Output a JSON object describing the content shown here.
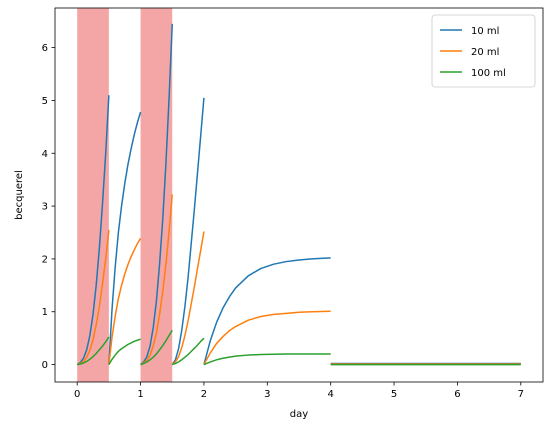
{
  "chart_data": {
    "type": "line",
    "title": "",
    "xlabel": "day",
    "ylabel": "becquerel",
    "xlim": [
      -0.35,
      7.35
    ],
    "ylim": [
      -0.33,
      6.75
    ],
    "xticks": [
      0,
      1,
      2,
      3,
      4,
      5,
      6,
      7
    ],
    "yticks": [
      0,
      1,
      2,
      3,
      4,
      5,
      6
    ],
    "grid": false,
    "legend_position": "top-right",
    "shaded_intervals": [
      {
        "x0": 0.0,
        "x1": 0.5,
        "color": "#f4a6a6"
      },
      {
        "x0": 1.0,
        "x1": 1.5,
        "color": "#f4a6a6"
      }
    ],
    "series": [
      {
        "name": "10 ml",
        "color": "#1f77b4",
        "segments": [
          [
            [
              0.0,
              0.0
            ],
            [
              0.05,
              0.04
            ],
            [
              0.1,
              0.12
            ],
            [
              0.15,
              0.28
            ],
            [
              0.2,
              0.55
            ],
            [
              0.25,
              0.95
            ],
            [
              0.3,
              1.5
            ],
            [
              0.35,
              2.2
            ],
            [
              0.4,
              3.05
            ],
            [
              0.45,
              4.0
            ],
            [
              0.5,
              5.1
            ]
          ],
          [
            [
              0.5,
              0.0
            ],
            [
              0.55,
              1.05
            ],
            [
              0.6,
              1.85
            ],
            [
              0.65,
              2.5
            ],
            [
              0.7,
              3.0
            ],
            [
              0.75,
              3.42
            ],
            [
              0.8,
              3.78
            ],
            [
              0.85,
              4.08
            ],
            [
              0.9,
              4.35
            ],
            [
              0.95,
              4.58
            ],
            [
              1.0,
              4.78
            ]
          ],
          [
            [
              1.0,
              0.0
            ],
            [
              1.05,
              0.05
            ],
            [
              1.1,
              0.15
            ],
            [
              1.15,
              0.35
            ],
            [
              1.2,
              0.7
            ],
            [
              1.25,
              1.2
            ],
            [
              1.3,
              1.9
            ],
            [
              1.35,
              2.75
            ],
            [
              1.4,
              3.8
            ],
            [
              1.45,
              5.05
            ],
            [
              1.5,
              6.45
            ]
          ],
          [
            [
              1.5,
              0.0
            ],
            [
              1.55,
              0.09
            ],
            [
              1.6,
              0.3
            ],
            [
              1.65,
              0.65
            ],
            [
              1.7,
              1.1
            ],
            [
              1.75,
              1.65
            ],
            [
              1.8,
              2.3
            ],
            [
              1.85,
              2.95
            ],
            [
              1.9,
              3.65
            ],
            [
              1.95,
              4.35
            ],
            [
              2.0,
              5.05
            ]
          ],
          [
            [
              2.0,
              0.0
            ],
            [
              2.1,
              0.45
            ],
            [
              2.2,
              0.8
            ],
            [
              2.3,
              1.07
            ],
            [
              2.4,
              1.28
            ],
            [
              2.5,
              1.45
            ],
            [
              2.7,
              1.68
            ],
            [
              2.9,
              1.82
            ],
            [
              3.1,
              1.9
            ],
            [
              3.3,
              1.95
            ],
            [
              3.5,
              1.98
            ],
            [
              3.7,
              2.0
            ],
            [
              4.0,
              2.02
            ]
          ],
          [
            [
              4.0,
              0.02
            ],
            [
              7.0,
              0.02
            ]
          ]
        ]
      },
      {
        "name": "20 ml",
        "color": "#ff7f0e",
        "segments": [
          [
            [
              0.0,
              0.0
            ],
            [
              0.05,
              0.02
            ],
            [
              0.1,
              0.06
            ],
            [
              0.15,
              0.14
            ],
            [
              0.2,
              0.27
            ],
            [
              0.25,
              0.47
            ],
            [
              0.3,
              0.75
            ],
            [
              0.35,
              1.1
            ],
            [
              0.4,
              1.53
            ],
            [
              0.45,
              2.0
            ],
            [
              0.5,
              2.55
            ]
          ],
          [
            [
              0.5,
              0.0
            ],
            [
              0.55,
              0.52
            ],
            [
              0.6,
              0.92
            ],
            [
              0.65,
              1.25
            ],
            [
              0.7,
              1.5
            ],
            [
              0.75,
              1.71
            ],
            [
              0.8,
              1.89
            ],
            [
              0.85,
              2.04
            ],
            [
              0.9,
              2.17
            ],
            [
              0.95,
              2.29
            ],
            [
              1.0,
              2.39
            ]
          ],
          [
            [
              1.0,
              0.0
            ],
            [
              1.05,
              0.03
            ],
            [
              1.1,
              0.08
            ],
            [
              1.15,
              0.18
            ],
            [
              1.2,
              0.35
            ],
            [
              1.25,
              0.6
            ],
            [
              1.3,
              0.95
            ],
            [
              1.35,
              1.38
            ],
            [
              1.4,
              1.9
            ],
            [
              1.45,
              2.52
            ],
            [
              1.5,
              3.22
            ]
          ],
          [
            [
              1.5,
              0.0
            ],
            [
              1.55,
              0.05
            ],
            [
              1.6,
              0.15
            ],
            [
              1.65,
              0.32
            ],
            [
              1.7,
              0.55
            ],
            [
              1.75,
              0.83
            ],
            [
              1.8,
              1.15
            ],
            [
              1.85,
              1.48
            ],
            [
              1.9,
              1.83
            ],
            [
              1.95,
              2.17
            ],
            [
              2.0,
              2.52
            ]
          ],
          [
            [
              2.0,
              0.0
            ],
            [
              2.1,
              0.22
            ],
            [
              2.2,
              0.4
            ],
            [
              2.3,
              0.53
            ],
            [
              2.4,
              0.64
            ],
            [
              2.5,
              0.72
            ],
            [
              2.7,
              0.84
            ],
            [
              2.9,
              0.91
            ],
            [
              3.1,
              0.95
            ],
            [
              3.3,
              0.97
            ],
            [
              3.5,
              0.99
            ],
            [
              3.7,
              1.0
            ],
            [
              4.0,
              1.01
            ]
          ],
          [
            [
              4.0,
              0.01
            ],
            [
              7.0,
              0.01
            ]
          ]
        ]
      },
      {
        "name": "100 ml",
        "color": "#2ca02c",
        "segments": [
          [
            [
              0.0,
              0.0
            ],
            [
              0.05,
              0.01
            ],
            [
              0.1,
              0.03
            ],
            [
              0.15,
              0.06
            ],
            [
              0.2,
              0.1
            ],
            [
              0.25,
              0.15
            ],
            [
              0.3,
              0.21
            ],
            [
              0.35,
              0.28
            ],
            [
              0.4,
              0.35
            ],
            [
              0.45,
              0.43
            ],
            [
              0.5,
              0.52
            ]
          ],
          [
            [
              0.5,
              0.0
            ],
            [
              0.55,
              0.1
            ],
            [
              0.6,
              0.18
            ],
            [
              0.65,
              0.25
            ],
            [
              0.7,
              0.3
            ],
            [
              0.75,
              0.34
            ],
            [
              0.8,
              0.38
            ],
            [
              0.85,
              0.41
            ],
            [
              0.9,
              0.44
            ],
            [
              0.95,
              0.46
            ],
            [
              1.0,
              0.48
            ]
          ],
          [
            [
              1.0,
              0.0
            ],
            [
              1.05,
              0.02
            ],
            [
              1.1,
              0.05
            ],
            [
              1.15,
              0.09
            ],
            [
              1.2,
              0.14
            ],
            [
              1.25,
              0.2
            ],
            [
              1.3,
              0.28
            ],
            [
              1.35,
              0.36
            ],
            [
              1.4,
              0.45
            ],
            [
              1.45,
              0.55
            ],
            [
              1.5,
              0.65
            ]
          ],
          [
            [
              1.5,
              0.0
            ],
            [
              1.55,
              0.02
            ],
            [
              1.6,
              0.05
            ],
            [
              1.65,
              0.09
            ],
            [
              1.7,
              0.14
            ],
            [
              1.75,
              0.19
            ],
            [
              1.8,
              0.25
            ],
            [
              1.85,
              0.31
            ],
            [
              1.9,
              0.37
            ],
            [
              1.95,
              0.44
            ],
            [
              2.0,
              0.5
            ]
          ],
          [
            [
              2.0,
              0.0
            ],
            [
              2.1,
              0.05
            ],
            [
              2.2,
              0.09
            ],
            [
              2.3,
              0.12
            ],
            [
              2.4,
              0.14
            ],
            [
              2.5,
              0.16
            ],
            [
              2.7,
              0.18
            ],
            [
              2.9,
              0.19
            ],
            [
              3.1,
              0.195
            ],
            [
              3.3,
              0.2
            ],
            [
              3.5,
              0.2
            ],
            [
              3.7,
              0.2
            ],
            [
              4.0,
              0.2
            ]
          ],
          [
            [
              4.0,
              0.0
            ],
            [
              7.0,
              0.0
            ]
          ]
        ]
      }
    ]
  }
}
